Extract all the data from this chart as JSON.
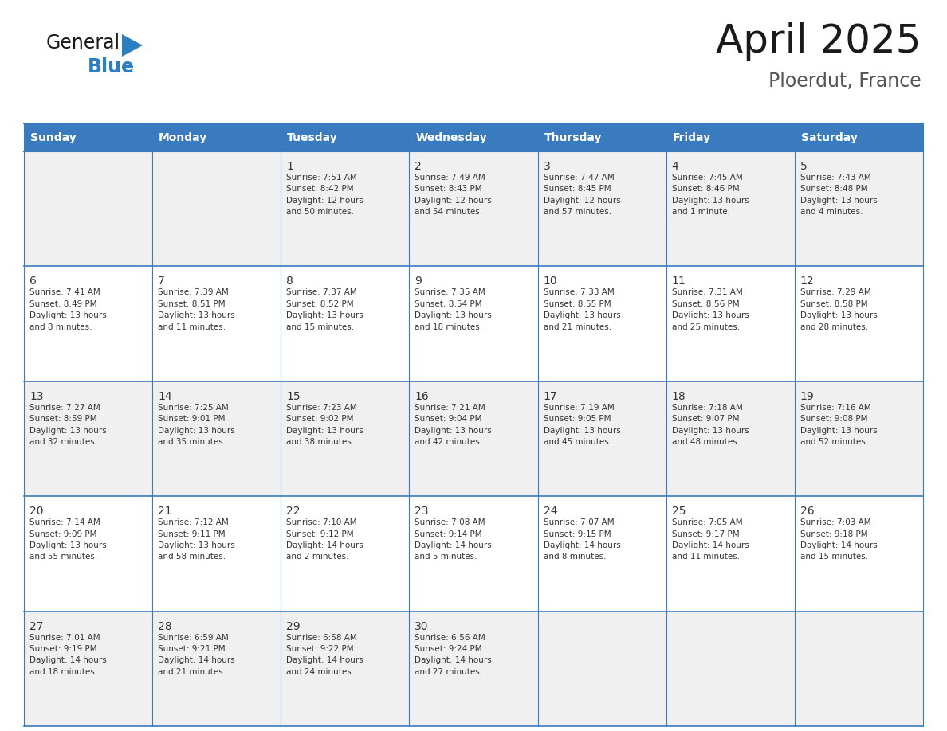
{
  "title": "April 2025",
  "subtitle": "Ploerdut, France",
  "header_color": "#3a7bbf",
  "header_text_color": "#ffffff",
  "cell_bg_even": "#f0f0f0",
  "cell_bg_odd": "#ffffff",
  "grid_line_color": "#3a7bbf",
  "text_color": "#333333",
  "days_of_week": [
    "Sunday",
    "Monday",
    "Tuesday",
    "Wednesday",
    "Thursday",
    "Friday",
    "Saturday"
  ],
  "weeks": [
    [
      {
        "day": "",
        "info": ""
      },
      {
        "day": "",
        "info": ""
      },
      {
        "day": "1",
        "info": "Sunrise: 7:51 AM\nSunset: 8:42 PM\nDaylight: 12 hours\nand 50 minutes."
      },
      {
        "day": "2",
        "info": "Sunrise: 7:49 AM\nSunset: 8:43 PM\nDaylight: 12 hours\nand 54 minutes."
      },
      {
        "day": "3",
        "info": "Sunrise: 7:47 AM\nSunset: 8:45 PM\nDaylight: 12 hours\nand 57 minutes."
      },
      {
        "day": "4",
        "info": "Sunrise: 7:45 AM\nSunset: 8:46 PM\nDaylight: 13 hours\nand 1 minute."
      },
      {
        "day": "5",
        "info": "Sunrise: 7:43 AM\nSunset: 8:48 PM\nDaylight: 13 hours\nand 4 minutes."
      }
    ],
    [
      {
        "day": "6",
        "info": "Sunrise: 7:41 AM\nSunset: 8:49 PM\nDaylight: 13 hours\nand 8 minutes."
      },
      {
        "day": "7",
        "info": "Sunrise: 7:39 AM\nSunset: 8:51 PM\nDaylight: 13 hours\nand 11 minutes."
      },
      {
        "day": "8",
        "info": "Sunrise: 7:37 AM\nSunset: 8:52 PM\nDaylight: 13 hours\nand 15 minutes."
      },
      {
        "day": "9",
        "info": "Sunrise: 7:35 AM\nSunset: 8:54 PM\nDaylight: 13 hours\nand 18 minutes."
      },
      {
        "day": "10",
        "info": "Sunrise: 7:33 AM\nSunset: 8:55 PM\nDaylight: 13 hours\nand 21 minutes."
      },
      {
        "day": "11",
        "info": "Sunrise: 7:31 AM\nSunset: 8:56 PM\nDaylight: 13 hours\nand 25 minutes."
      },
      {
        "day": "12",
        "info": "Sunrise: 7:29 AM\nSunset: 8:58 PM\nDaylight: 13 hours\nand 28 minutes."
      }
    ],
    [
      {
        "day": "13",
        "info": "Sunrise: 7:27 AM\nSunset: 8:59 PM\nDaylight: 13 hours\nand 32 minutes."
      },
      {
        "day": "14",
        "info": "Sunrise: 7:25 AM\nSunset: 9:01 PM\nDaylight: 13 hours\nand 35 minutes."
      },
      {
        "day": "15",
        "info": "Sunrise: 7:23 AM\nSunset: 9:02 PM\nDaylight: 13 hours\nand 38 minutes."
      },
      {
        "day": "16",
        "info": "Sunrise: 7:21 AM\nSunset: 9:04 PM\nDaylight: 13 hours\nand 42 minutes."
      },
      {
        "day": "17",
        "info": "Sunrise: 7:19 AM\nSunset: 9:05 PM\nDaylight: 13 hours\nand 45 minutes."
      },
      {
        "day": "18",
        "info": "Sunrise: 7:18 AM\nSunset: 9:07 PM\nDaylight: 13 hours\nand 48 minutes."
      },
      {
        "day": "19",
        "info": "Sunrise: 7:16 AM\nSunset: 9:08 PM\nDaylight: 13 hours\nand 52 minutes."
      }
    ],
    [
      {
        "day": "20",
        "info": "Sunrise: 7:14 AM\nSunset: 9:09 PM\nDaylight: 13 hours\nand 55 minutes."
      },
      {
        "day": "21",
        "info": "Sunrise: 7:12 AM\nSunset: 9:11 PM\nDaylight: 13 hours\nand 58 minutes."
      },
      {
        "day": "22",
        "info": "Sunrise: 7:10 AM\nSunset: 9:12 PM\nDaylight: 14 hours\nand 2 minutes."
      },
      {
        "day": "23",
        "info": "Sunrise: 7:08 AM\nSunset: 9:14 PM\nDaylight: 14 hours\nand 5 minutes."
      },
      {
        "day": "24",
        "info": "Sunrise: 7:07 AM\nSunset: 9:15 PM\nDaylight: 14 hours\nand 8 minutes."
      },
      {
        "day": "25",
        "info": "Sunrise: 7:05 AM\nSunset: 9:17 PM\nDaylight: 14 hours\nand 11 minutes."
      },
      {
        "day": "26",
        "info": "Sunrise: 7:03 AM\nSunset: 9:18 PM\nDaylight: 14 hours\nand 15 minutes."
      }
    ],
    [
      {
        "day": "27",
        "info": "Sunrise: 7:01 AM\nSunset: 9:19 PM\nDaylight: 14 hours\nand 18 minutes."
      },
      {
        "day": "28",
        "info": "Sunrise: 6:59 AM\nSunset: 9:21 PM\nDaylight: 14 hours\nand 21 minutes."
      },
      {
        "day": "29",
        "info": "Sunrise: 6:58 AM\nSunset: 9:22 PM\nDaylight: 14 hours\nand 24 minutes."
      },
      {
        "day": "30",
        "info": "Sunrise: 6:56 AM\nSunset: 9:24 PM\nDaylight: 14 hours\nand 27 minutes."
      },
      {
        "day": "",
        "info": ""
      },
      {
        "day": "",
        "info": ""
      },
      {
        "day": "",
        "info": ""
      }
    ]
  ],
  "logo_text_general": "General",
  "logo_text_blue": "Blue",
  "logo_black_color": "#1a1a1a",
  "logo_blue_color": "#2b7ec1",
  "logo_triangle_color": "#2b7ec1",
  "title_color": "#1a1a1a",
  "subtitle_color": "#555555"
}
